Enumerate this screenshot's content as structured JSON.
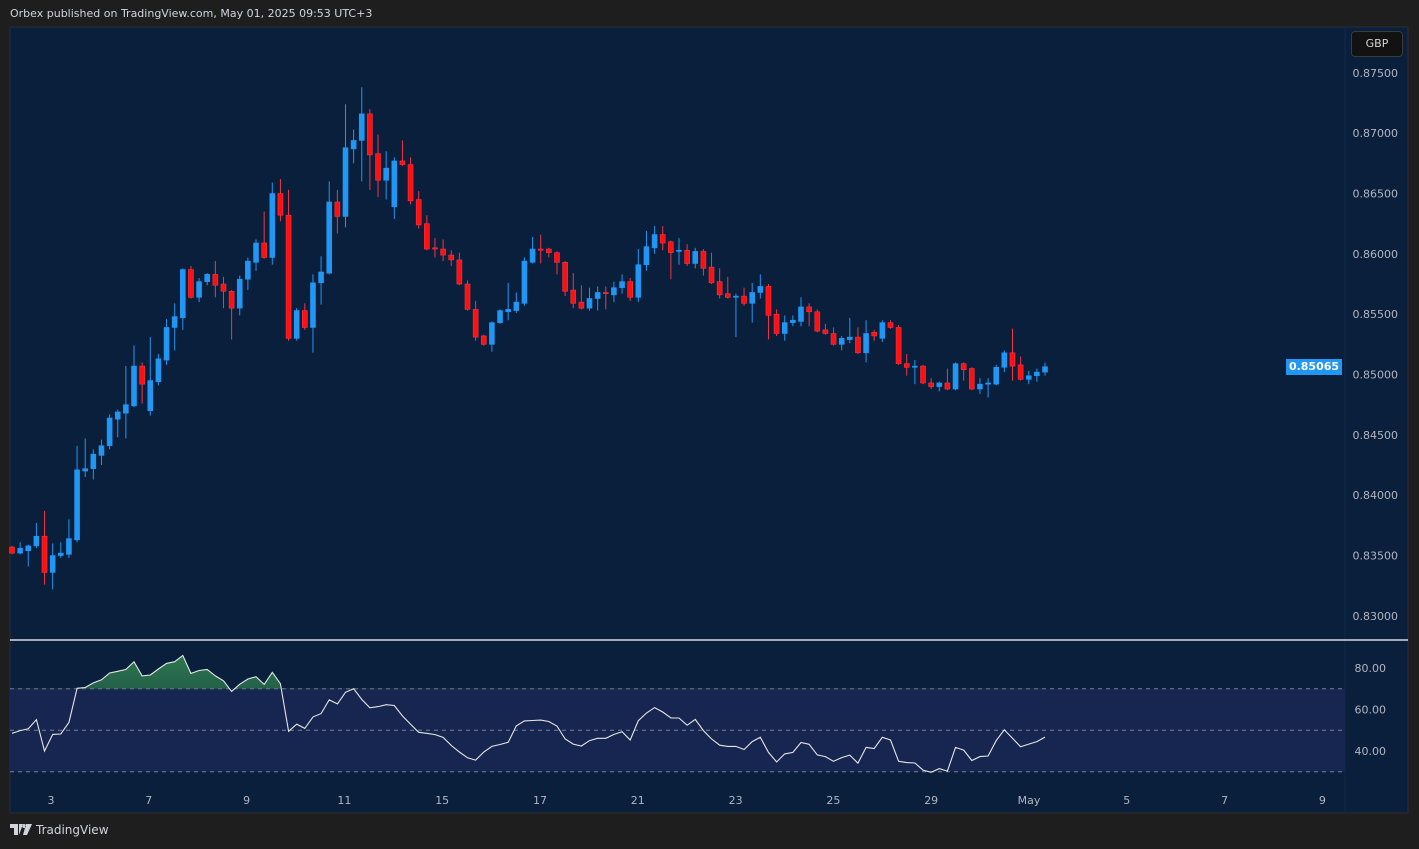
{
  "header": {
    "text": "Orbex published on TradingView.com, May 01, 2025 09:53 UTC+3"
  },
  "currency_button": "GBP",
  "last_price_label": "0.85065",
  "footer": {
    "brand": "TradingView"
  },
  "colors": {
    "background": "#0a1f3c",
    "up": "#2196f3",
    "down": "#ff1010",
    "rsi_line": "#e6e6e6",
    "rsi_band": "#172650",
    "overbought_fill": "#2f7d4f",
    "last_price": "#2196f3"
  },
  "chart_data": [
    {
      "type": "candlestick",
      "ylim": [
        0.828,
        0.8788
      ],
      "y_ticks": [
        "0.87500",
        "0.87000",
        "0.86500",
        "0.86000",
        "0.85500",
        "0.85000",
        "0.84500",
        "0.84000",
        "0.83500",
        "0.83000"
      ],
      "x_ticks": [
        "3",
        "7",
        "9",
        "11",
        "15",
        "17",
        "21",
        "23",
        "25",
        "29",
        "May",
        "5",
        "7",
        "9"
      ],
      "last_price": 0.85065,
      "ohlc_fields": [
        "open",
        "high",
        "low",
        "close"
      ],
      "ohlc": [
        [
          0.8357,
          0.8358,
          0.8351,
          0.8352
        ],
        [
          0.8352,
          0.8361,
          0.8351,
          0.8356
        ],
        [
          0.8354,
          0.8359,
          0.8341,
          0.8358
        ],
        [
          0.8358,
          0.8377,
          0.8356,
          0.8366
        ],
        [
          0.8366,
          0.8387,
          0.8326,
          0.8336
        ],
        [
          0.8336,
          0.836,
          0.8322,
          0.835
        ],
        [
          0.835,
          0.8361,
          0.8348,
          0.8352
        ],
        [
          0.8351,
          0.838,
          0.8348,
          0.8364
        ],
        [
          0.8363,
          0.8441,
          0.8361,
          0.8421
        ],
        [
          0.842,
          0.8447,
          0.8415,
          0.8422
        ],
        [
          0.8422,
          0.8438,
          0.8413,
          0.8434
        ],
        [
          0.8433,
          0.8446,
          0.8425,
          0.8441
        ],
        [
          0.8441,
          0.8467,
          0.8438,
          0.8464
        ],
        [
          0.8463,
          0.8471,
          0.8448,
          0.8469
        ],
        [
          0.8468,
          0.8507,
          0.8447,
          0.8475
        ],
        [
          0.8474,
          0.8524,
          0.8473,
          0.8507
        ],
        [
          0.8507,
          0.851,
          0.8476,
          0.8492
        ],
        [
          0.847,
          0.8531,
          0.8466,
          0.8495
        ],
        [
          0.8494,
          0.8517,
          0.8491,
          0.8513
        ],
        [
          0.8512,
          0.8546,
          0.8508,
          0.8539
        ],
        [
          0.8539,
          0.8559,
          0.852,
          0.8548
        ],
        [
          0.8547,
          0.8588,
          0.8537,
          0.8587
        ],
        [
          0.8587,
          0.859,
          0.8563,
          0.8564
        ],
        [
          0.8564,
          0.858,
          0.856,
          0.8577
        ],
        [
          0.8577,
          0.8584,
          0.8574,
          0.8583
        ],
        [
          0.8583,
          0.8594,
          0.8564,
          0.8574
        ],
        [
          0.8575,
          0.8581,
          0.8555,
          0.8569
        ],
        [
          0.8569,
          0.857,
          0.8529,
          0.8555
        ],
        [
          0.8555,
          0.8582,
          0.8549,
          0.8579
        ],
        [
          0.8579,
          0.8597,
          0.857,
          0.8594
        ],
        [
          0.8593,
          0.8612,
          0.8586,
          0.8609
        ],
        [
          0.8609,
          0.8635,
          0.8596,
          0.8597
        ],
        [
          0.8597,
          0.8659,
          0.8591,
          0.865
        ],
        [
          0.865,
          0.8662,
          0.8627,
          0.8632
        ],
        [
          0.8632,
          0.8653,
          0.8528,
          0.853
        ],
        [
          0.853,
          0.8555,
          0.8528,
          0.8553
        ],
        [
          0.8553,
          0.8559,
          0.8537,
          0.8539
        ],
        [
          0.8539,
          0.8583,
          0.8518,
          0.8576
        ],
        [
          0.8576,
          0.8598,
          0.8558,
          0.8585
        ],
        [
          0.8584,
          0.866,
          0.8583,
          0.8643
        ],
        [
          0.8643,
          0.8653,
          0.8617,
          0.8631
        ],
        [
          0.8631,
          0.8724,
          0.8622,
          0.8688
        ],
        [
          0.8687,
          0.8703,
          0.8675,
          0.8694
        ],
        [
          0.8694,
          0.8738,
          0.866,
          0.8716
        ],
        [
          0.8716,
          0.872,
          0.8653,
          0.8682
        ],
        [
          0.8683,
          0.8699,
          0.8647,
          0.8661
        ],
        [
          0.8661,
          0.8685,
          0.8645,
          0.8671
        ],
        [
          0.8639,
          0.868,
          0.8629,
          0.8677
        ],
        [
          0.8677,
          0.8694,
          0.8673,
          0.8674
        ],
        [
          0.8674,
          0.868,
          0.8641,
          0.8644
        ],
        [
          0.8645,
          0.8652,
          0.8621,
          0.8624
        ],
        [
          0.8625,
          0.8632,
          0.8603,
          0.8604
        ],
        [
          0.8605,
          0.8613,
          0.8597,
          0.8604
        ],
        [
          0.8604,
          0.8612,
          0.8594,
          0.8599
        ],
        [
          0.8599,
          0.8603,
          0.859,
          0.8595
        ],
        [
          0.8595,
          0.8601,
          0.8574,
          0.8575
        ],
        [
          0.8575,
          0.8578,
          0.8553,
          0.8554
        ],
        [
          0.8554,
          0.8561,
          0.8528,
          0.8531
        ],
        [
          0.8532,
          0.8533,
          0.8524,
          0.8525
        ],
        [
          0.8525,
          0.8544,
          0.8519,
          0.8543
        ],
        [
          0.8543,
          0.8554,
          0.8542,
          0.8553
        ],
        [
          0.8552,
          0.8576,
          0.8545,
          0.8554
        ],
        [
          0.8553,
          0.8568,
          0.8551,
          0.856
        ],
        [
          0.8559,
          0.8597,
          0.8557,
          0.8594
        ],
        [
          0.8593,
          0.8614,
          0.8592,
          0.8604
        ],
        [
          0.8604,
          0.8616,
          0.8592,
          0.8603
        ],
        [
          0.8604,
          0.8605,
          0.8597,
          0.8601
        ],
        [
          0.8601,
          0.8602,
          0.8583,
          0.8593
        ],
        [
          0.8593,
          0.8594,
          0.8565,
          0.8569
        ],
        [
          0.857,
          0.8584,
          0.8555,
          0.8559
        ],
        [
          0.856,
          0.8574,
          0.8554,
          0.8555
        ],
        [
          0.8555,
          0.8572,
          0.8553,
          0.8563
        ],
        [
          0.8563,
          0.8573,
          0.8553,
          0.8568
        ],
        [
          0.8568,
          0.8573,
          0.8554,
          0.8567
        ],
        [
          0.8566,
          0.8577,
          0.856,
          0.8572
        ],
        [
          0.8572,
          0.8583,
          0.8567,
          0.8577
        ],
        [
          0.8577,
          0.858,
          0.8561,
          0.8564
        ],
        [
          0.8564,
          0.8604,
          0.856,
          0.8591
        ],
        [
          0.8591,
          0.8619,
          0.8586,
          0.8606
        ],
        [
          0.8605,
          0.8623,
          0.86,
          0.8616
        ],
        [
          0.8616,
          0.8623,
          0.8603,
          0.8609
        ],
        [
          0.861,
          0.8611,
          0.8579,
          0.8601
        ],
        [
          0.8602,
          0.8613,
          0.8591,
          0.8603
        ],
        [
          0.8603,
          0.8608,
          0.859,
          0.8592
        ],
        [
          0.8592,
          0.8605,
          0.8588,
          0.8602
        ],
        [
          0.8602,
          0.8604,
          0.8582,
          0.8588
        ],
        [
          0.8589,
          0.8601,
          0.8575,
          0.8576
        ],
        [
          0.8577,
          0.8588,
          0.8563,
          0.8566
        ],
        [
          0.8567,
          0.8581,
          0.8563,
          0.8564
        ],
        [
          0.8564,
          0.8567,
          0.8531,
          0.8565
        ],
        [
          0.8565,
          0.8572,
          0.8557,
          0.8559
        ],
        [
          0.8559,
          0.8576,
          0.8543,
          0.8568
        ],
        [
          0.8568,
          0.8583,
          0.8563,
          0.8573
        ],
        [
          0.8573,
          0.8575,
          0.8529,
          0.8549
        ],
        [
          0.855,
          0.8554,
          0.8532,
          0.8534
        ],
        [
          0.8534,
          0.8549,
          0.8528,
          0.8543
        ],
        [
          0.8543,
          0.8549,
          0.854,
          0.8545
        ],
        [
          0.8544,
          0.8564,
          0.854,
          0.8556
        ],
        [
          0.8556,
          0.8559,
          0.854,
          0.8552
        ],
        [
          0.8552,
          0.8554,
          0.8535,
          0.8536
        ],
        [
          0.8537,
          0.8542,
          0.8533,
          0.8534
        ],
        [
          0.8534,
          0.8539,
          0.8524,
          0.8525
        ],
        [
          0.8525,
          0.8532,
          0.852,
          0.853
        ],
        [
          0.8529,
          0.8547,
          0.8526,
          0.8531
        ],
        [
          0.8531,
          0.8539,
          0.8517,
          0.8518
        ],
        [
          0.8518,
          0.8545,
          0.851,
          0.8534
        ],
        [
          0.8535,
          0.8537,
          0.8528,
          0.8532
        ],
        [
          0.853,
          0.8545,
          0.8527,
          0.8543
        ],
        [
          0.8543,
          0.8545,
          0.8538,
          0.8539
        ],
        [
          0.8539,
          0.8541,
          0.8508,
          0.8509
        ],
        [
          0.8509,
          0.8517,
          0.8499,
          0.8506
        ],
        [
          0.8506,
          0.8512,
          0.8492,
          0.8507
        ],
        [
          0.8507,
          0.8508,
          0.8492,
          0.8493
        ],
        [
          0.8493,
          0.8497,
          0.8488,
          0.849
        ],
        [
          0.849,
          0.8494,
          0.8486,
          0.8493
        ],
        [
          0.8493,
          0.8505,
          0.8487,
          0.8488
        ],
        [
          0.8488,
          0.851,
          0.8487,
          0.8509
        ],
        [
          0.8509,
          0.851,
          0.8495,
          0.8504
        ],
        [
          0.8505,
          0.8506,
          0.8487,
          0.8488
        ],
        [
          0.8488,
          0.8497,
          0.8484,
          0.8492
        ],
        [
          0.8492,
          0.8497,
          0.8481,
          0.8493
        ],
        [
          0.8492,
          0.8508,
          0.8491,
          0.8506
        ],
        [
          0.8506,
          0.852,
          0.8502,
          0.8518
        ],
        [
          0.8518,
          0.8538,
          0.8495,
          0.8507
        ],
        [
          0.8508,
          0.8515,
          0.8495,
          0.8496
        ],
        [
          0.8496,
          0.8503,
          0.8492,
          0.8499
        ],
        [
          0.8499,
          0.8505,
          0.8494,
          0.8502
        ],
        [
          0.8502,
          0.851,
          0.8499,
          0.85065
        ]
      ]
    },
    {
      "type": "line",
      "ylim": [
        23.6,
        93
      ],
      "y_ticks": [
        "80.00",
        "60.00",
        "40.00"
      ],
      "levels": [
        70,
        50,
        30
      ],
      "values": [
        48.5,
        49.8,
        50.7,
        55.1,
        40.0,
        48.0,
        48.2,
        53.7,
        70.2,
        70.6,
        72.8,
        74.3,
        77.6,
        78.4,
        79.3,
        83.0,
        76.2,
        76.6,
        79.5,
        82.2,
        83.0,
        86.0,
        77.4,
        78.8,
        79.3,
        76.2,
        73.8,
        68.7,
        72.2,
        74.7,
        75.8,
        72.1,
        77.9,
        72.4,
        49.5,
        52.9,
        50.9,
        56.4,
        58.0,
        64.6,
        62.7,
        68.3,
        70.0,
        64.8,
        60.8,
        61.4,
        62.3,
        61.9,
        56.9,
        52.9,
        49.0,
        48.5,
        47.9,
        46.6,
        42.7,
        39.5,
        36.7,
        35.6,
        39.5,
        42.2,
        43.1,
        44.2,
        52.1,
        54.5,
        54.7,
        54.9,
        54.2,
        52.0,
        45.8,
        43.3,
        42.4,
        45.0,
        46.1,
        46.1,
        48.0,
        49.3,
        45.3,
        54.6,
        58.3,
        60.9,
        58.8,
        55.9,
        55.9,
        52.4,
        55.2,
        49.8,
        45.8,
        42.8,
        42.2,
        42.2,
        40.7,
        44.5,
        46.6,
        39.3,
        34.7,
        38.6,
        39.3,
        44.1,
        43.2,
        38.1,
        37.3,
        35.0,
        36.8,
        38.0,
        34.1,
        41.7,
        41.2,
        46.6,
        45.3,
        35.0,
        34.4,
        34.2,
        30.8,
        29.7,
        31.5,
        30.3,
        41.7,
        40.4,
        35.4,
        37.3,
        37.6,
        45.0,
        50.2,
        46.1,
        42.0,
        43.3,
        44.5,
        46.7
      ]
    }
  ]
}
